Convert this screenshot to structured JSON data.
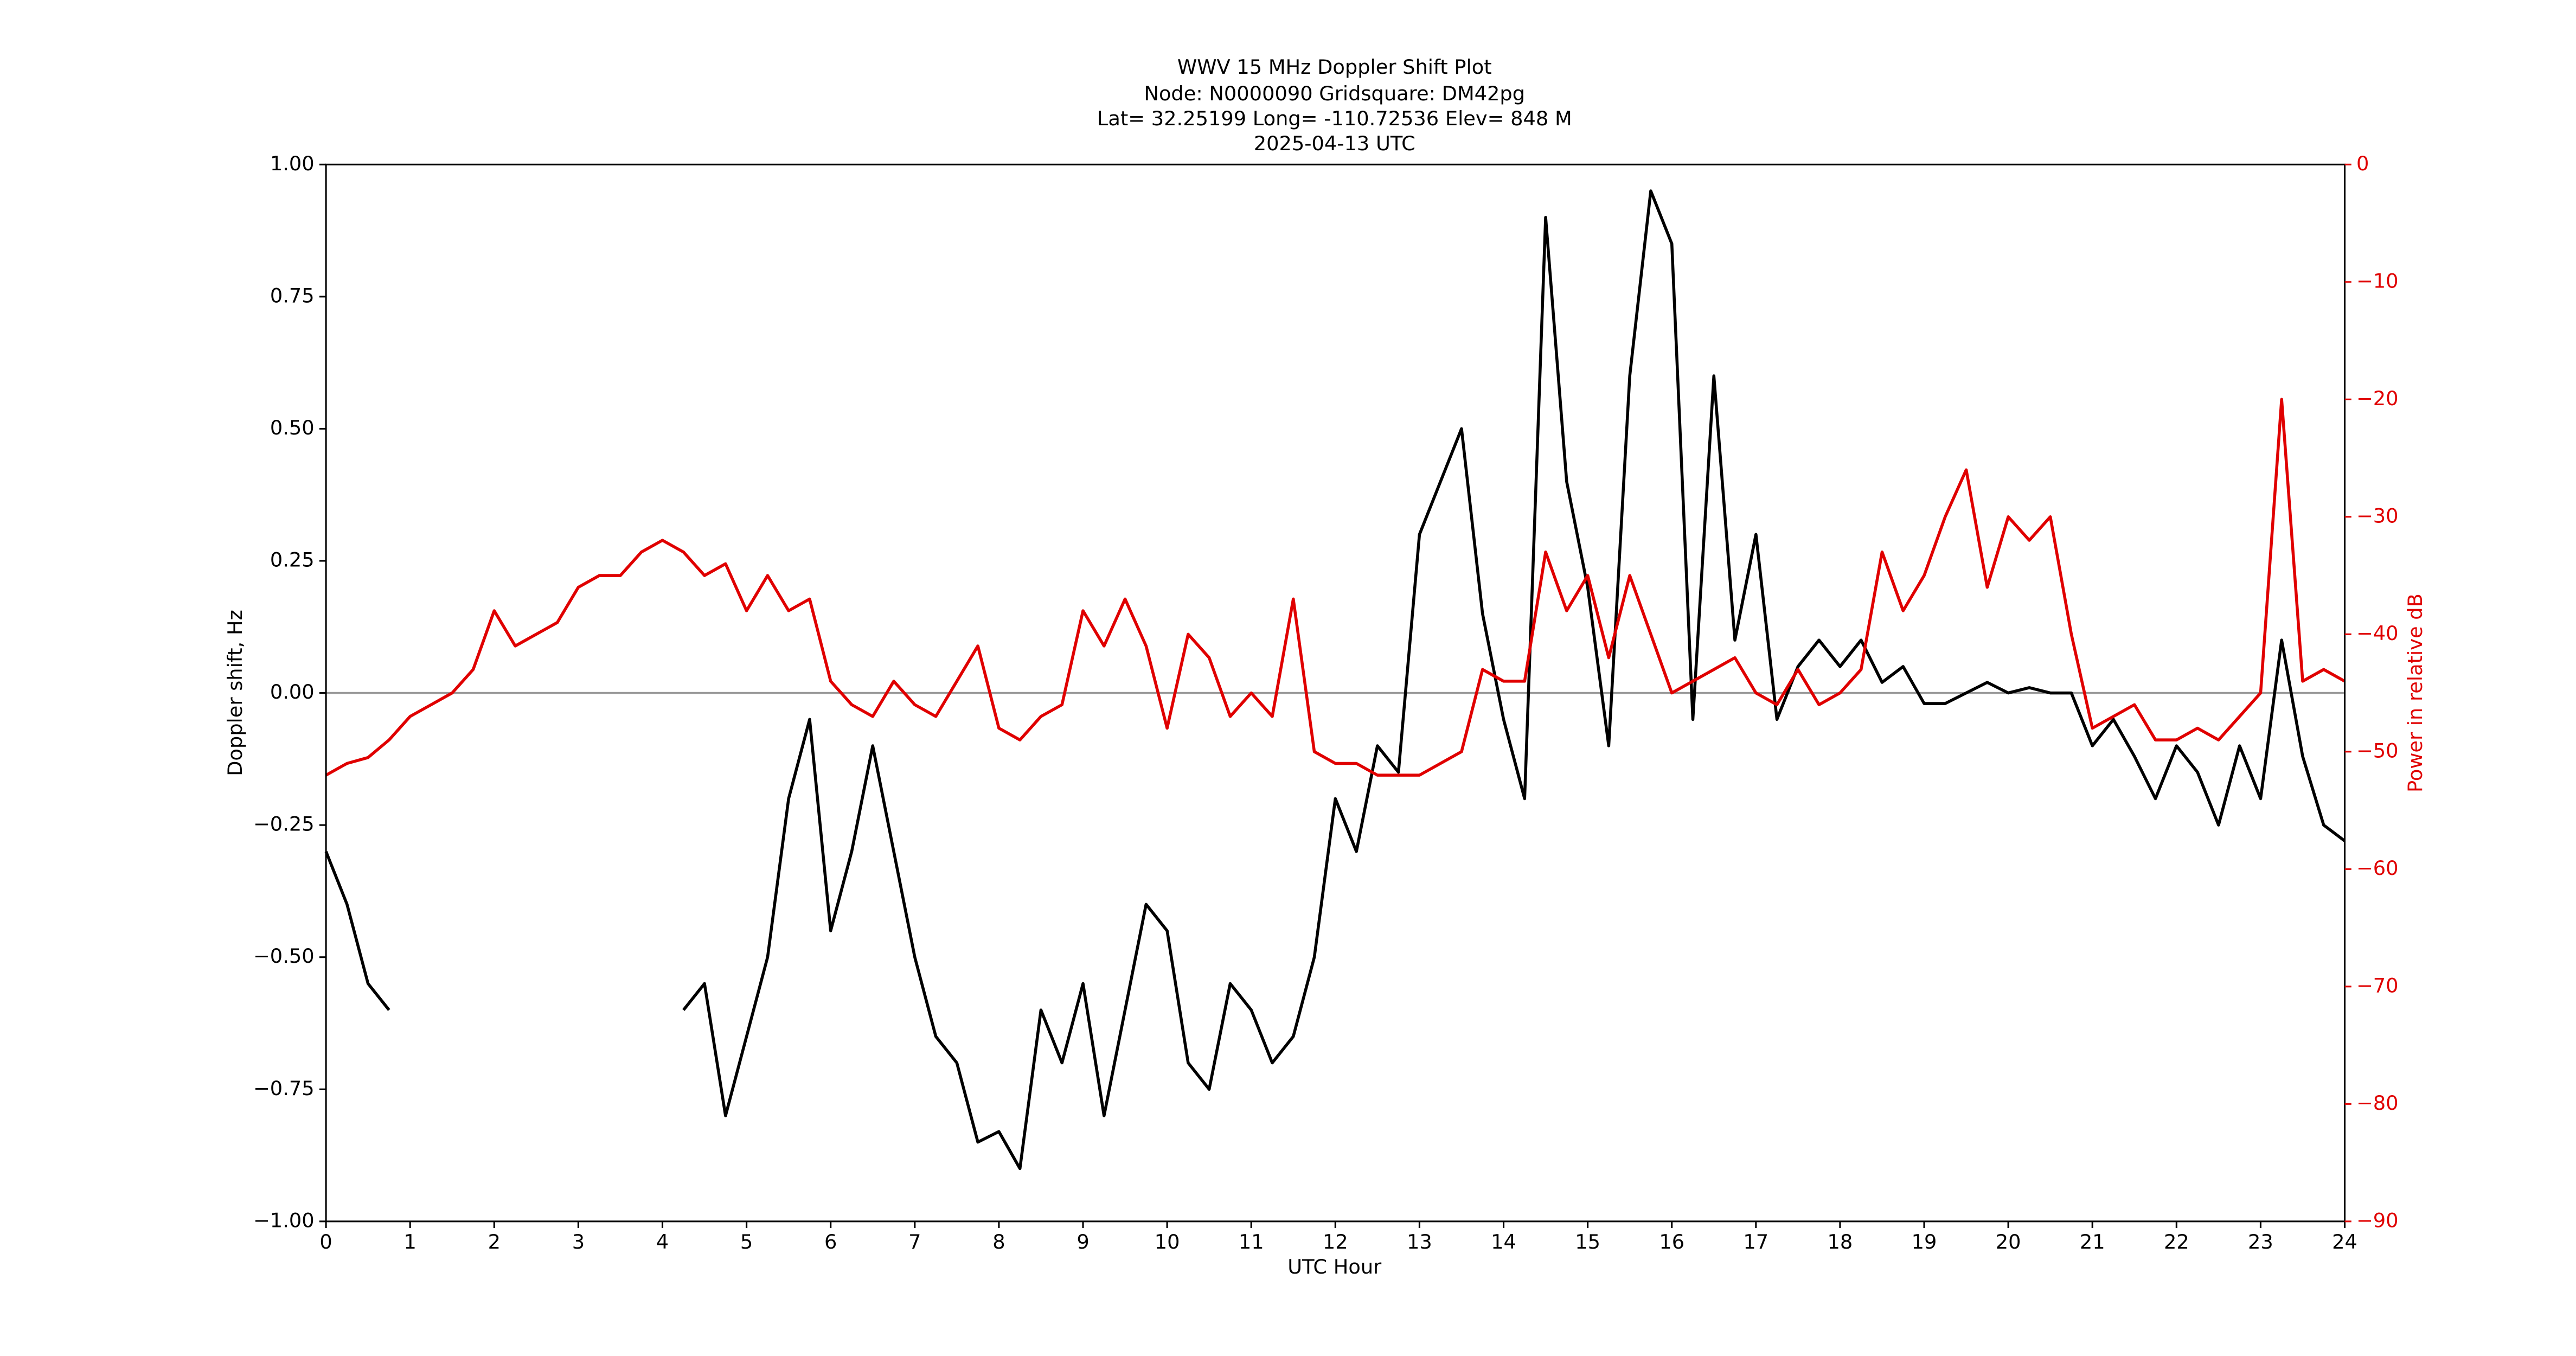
{
  "chart_data": {
    "type": "line",
    "title": [
      "WWV 15 MHz Doppler Shift Plot",
      "Node:  N0000090     Gridsquare:  DM42pg",
      "Lat= 32.25199    Long= -110.72536    Elev= 848 M",
      "2025-04-13  UTC"
    ],
    "xlabel": "UTC Hour",
    "ylabel": "Doppler shift, Hz",
    "y2label": "Power in relative dB",
    "y2color": "#e00000",
    "hline": 0,
    "x": [
      0,
      0.25,
      0.5,
      0.75,
      1,
      1.25,
      1.5,
      1.75,
      2,
      2.25,
      2.5,
      2.75,
      3,
      3.25,
      3.5,
      3.75,
      4,
      4.25,
      4.5,
      4.75,
      5,
      5.25,
      5.5,
      5.75,
      6,
      6.25,
      6.5,
      6.75,
      7,
      7.25,
      7.5,
      7.75,
      8,
      8.25,
      8.5,
      8.75,
      9,
      9.25,
      9.5,
      9.75,
      10,
      10.25,
      10.5,
      10.75,
      11,
      11.25,
      11.5,
      11.75,
      12,
      12.25,
      12.5,
      12.75,
      13,
      13.25,
      13.5,
      13.75,
      14,
      14.25,
      14.5,
      14.75,
      15,
      15.25,
      15.5,
      15.75,
      16,
      16.25,
      16.5,
      16.75,
      17,
      17.25,
      17.5,
      17.75,
      18,
      18.25,
      18.5,
      18.75,
      19,
      19.25,
      19.5,
      19.75,
      20,
      20.25,
      20.5,
      20.75,
      21,
      21.25,
      21.5,
      21.75,
      22,
      22.25,
      22.5,
      22.75,
      23,
      23.25,
      23.5,
      23.75,
      24
    ],
    "series": [
      {
        "color": "#000000",
        "axis": "y",
        "values": [
          -0.3,
          -0.4,
          -0.55,
          -0.6,
          null,
          null,
          null,
          null,
          null,
          null,
          null,
          null,
          null,
          null,
          null,
          null,
          null,
          -0.6,
          -0.55,
          -0.8,
          -0.65,
          -0.5,
          -0.2,
          -0.05,
          -0.45,
          -0.3,
          -0.1,
          -0.3,
          -0.5,
          -0.65,
          -0.7,
          -0.85,
          -0.83,
          -0.9,
          -0.6,
          -0.7,
          -0.55,
          -0.8,
          -0.6,
          -0.4,
          -0.45,
          -0.7,
          -0.75,
          -0.55,
          -0.6,
          -0.7,
          -0.65,
          -0.5,
          -0.2,
          -0.3,
          -0.1,
          -0.15,
          0.3,
          0.4,
          0.5,
          0.15,
          -0.05,
          -0.2,
          0.9,
          0.4,
          0.2,
          -0.1,
          0.6,
          0.95,
          0.85,
          -0.05,
          0.6,
          0.1,
          0.3,
          -0.05,
          0.05,
          0.1,
          0.05,
          0.1,
          0.02,
          0.05,
          -0.02,
          -0.02,
          0,
          0.02,
          0,
          0.01,
          0,
          0,
          -0.1,
          -0.05,
          -0.12,
          -0.2,
          -0.1,
          -0.15,
          -0.25,
          -0.1,
          -0.2,
          0.1,
          -0.12,
          -0.25,
          -0.28
        ]
      },
      {
        "color": "#e00000",
        "axis": "y2",
        "values": [
          -52,
          -51,
          -50.5,
          -49,
          -47,
          -46,
          -45,
          -43,
          -38,
          -41,
          -40,
          -39,
          -36,
          -35,
          -35,
          -33,
          -32,
          -33,
          -35,
          -34,
          -38,
          -35,
          -38,
          -37,
          -44,
          -46,
          -47,
          -44,
          -46,
          -47,
          -44,
          -41,
          -48,
          -49,
          -47,
          -46,
          -38,
          -41,
          -37,
          -41,
          -48,
          -40,
          -42,
          -47,
          -45,
          -47,
          -37,
          -50,
          -51,
          -51,
          -52,
          -52,
          -52,
          -51,
          -50,
          -43,
          -44,
          -44,
          -33,
          -38,
          -35,
          -42,
          -35,
          -40,
          -45,
          -44,
          -43,
          -42,
          -45,
          -46,
          -43,
          -46,
          -45,
          -43,
          -33,
          -38,
          -35,
          -30,
          -26,
          -36,
          -30,
          -32,
          -30,
          -40,
          -48,
          -47,
          -46,
          -49,
          -49,
          -48,
          -49,
          -47,
          -45,
          -20,
          -44,
          -43,
          -44
        ]
      }
    ],
    "xlim": [
      0,
      24
    ],
    "xticks": [
      0,
      1,
      2,
      3,
      4,
      5,
      6,
      7,
      8,
      9,
      10,
      11,
      12,
      13,
      14,
      15,
      16,
      17,
      18,
      19,
      20,
      21,
      22,
      23,
      24
    ],
    "ylim": [
      -1,
      1
    ],
    "yticks": [
      {
        "value": -1,
        "label": "−1.00"
      },
      {
        "value": -0.75,
        "label": "−0.75"
      },
      {
        "value": -0.5,
        "label": "−0.50"
      },
      {
        "value": -0.25,
        "label": "−0.25"
      },
      {
        "value": 0,
        "label": "0.00"
      },
      {
        "value": 0.25,
        "label": "0.25"
      },
      {
        "value": 0.5,
        "label": "0.50"
      },
      {
        "value": 0.75,
        "label": "0.75"
      },
      {
        "value": 1,
        "label": "1.00"
      }
    ],
    "y2lim": [
      -90,
      0
    ],
    "y2ticks": [
      0,
      {
        "value": -10,
        "label": "−10"
      },
      {
        "value": -20,
        "label": "−20"
      },
      {
        "value": -30,
        "label": "−30"
      },
      {
        "value": -40,
        "label": "−40"
      },
      {
        "value": -50,
        "label": "−50"
      },
      {
        "value": -60,
        "label": "−60"
      },
      {
        "value": -70,
        "label": "−70"
      },
      {
        "value": -80,
        "label": "−80"
      },
      {
        "value": -90,
        "label": "−90"
      }
    ]
  }
}
